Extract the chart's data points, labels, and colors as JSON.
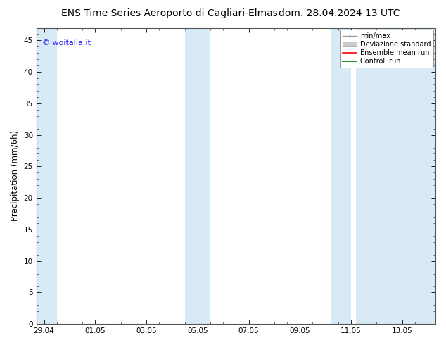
{
  "title_left": "ENS Time Series Aeroporto di Cagliari-Elmas",
  "title_right": "dom. 28.04.2024 13 UTC",
  "ylabel": "Precipitation (mm/6h)",
  "ylim": [
    0,
    47
  ],
  "yticks": [
    0,
    5,
    10,
    15,
    20,
    25,
    30,
    35,
    40,
    45
  ],
  "xtick_labels": [
    "29.04",
    "01.05",
    "03.05",
    "05.05",
    "07.05",
    "09.05",
    "11.05",
    "13.05"
  ],
  "xtick_positions": [
    0.0,
    2.0,
    4.0,
    6.0,
    8.0,
    10.0,
    12.0,
    14.0
  ],
  "xlim": [
    -0.3,
    15.3
  ],
  "watermark": "© woitalia.it",
  "watermark_color": "#1a1aff",
  "bg_color": "#ffffff",
  "plot_bg_color": "#ffffff",
  "band_color": "#d8eaf5",
  "band_positions": [
    [
      -0.3,
      0.5
    ],
    [
      5.5,
      6.5
    ],
    [
      11.2,
      12.0
    ],
    [
      12.2,
      15.3
    ]
  ],
  "legend_items": [
    {
      "label": "min/max",
      "color": "#aaaaaa",
      "type": "minmax"
    },
    {
      "label": "Deviazione standard",
      "color": "#cccccc",
      "type": "fill"
    },
    {
      "label": "Ensemble mean run",
      "color": "#ff0000",
      "type": "line"
    },
    {
      "label": "Controll run",
      "color": "#007700",
      "type": "line"
    }
  ],
  "title_fontsize": 10,
  "tick_fontsize": 7.5,
  "ylabel_fontsize": 8.5,
  "watermark_fontsize": 8
}
